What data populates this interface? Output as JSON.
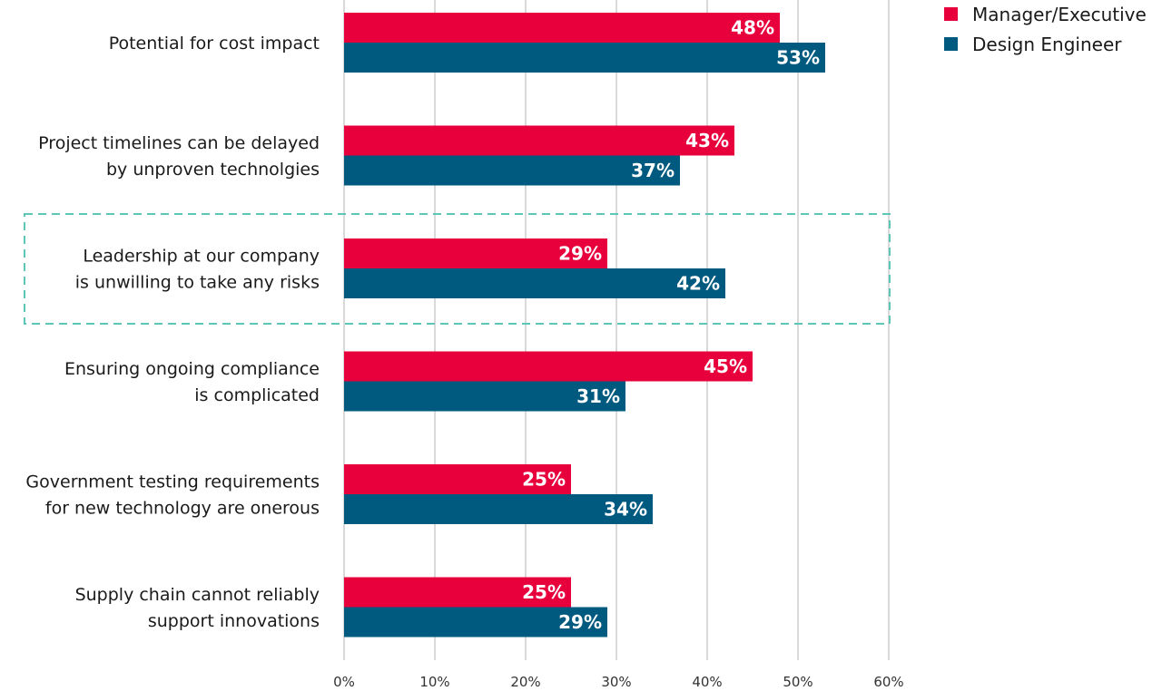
{
  "chart_data": {
    "type": "bar",
    "orientation": "horizontal",
    "categories": [
      [
        "Potential for cost impact"
      ],
      [
        "Project timelines can be delayed",
        "by unproven technolgies"
      ],
      [
        "Leadership at our company",
        "is unwilling to take any risks"
      ],
      [
        "Ensuring ongoing compliance",
        "is complicated"
      ],
      [
        "Government testing requirements",
        "for new technology are onerous"
      ],
      [
        "Supply chain cannot reliably",
        "support innovations"
      ]
    ],
    "series": [
      {
        "name": "Manager/Executive",
        "color": "#e8003d",
        "values": [
          48,
          43,
          29,
          45,
          25,
          25
        ]
      },
      {
        "name": "Design Engineer",
        "color": "#005a7f",
        "values": [
          53,
          37,
          42,
          31,
          34,
          29
        ]
      }
    ],
    "xlim": [
      0,
      60
    ],
    "xticks": [
      0,
      10,
      20,
      30,
      40,
      50,
      60
    ],
    "tick_suffix": "%",
    "label_suffix": "%",
    "grid": true,
    "legend_position": "top-right",
    "highlighted_category_index": 2,
    "highlight_color": "#5cc6b7"
  }
}
